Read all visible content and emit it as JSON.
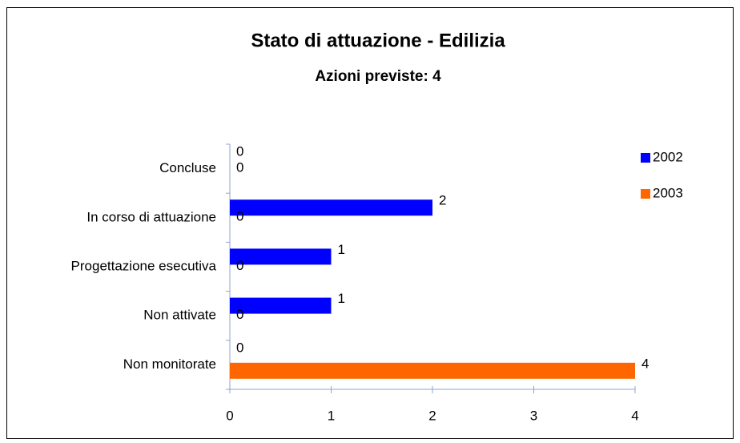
{
  "chart_data": {
    "type": "bar",
    "orientation": "horizontal",
    "title": "Stato di attuazione - Edilizia",
    "subtitle": "Azioni previste: 4",
    "categories": [
      "Concluse",
      "In corso di attuazione",
      "Progettazione esecutiva",
      "Non attivate",
      "Non monitorate"
    ],
    "series": [
      {
        "name": "2002",
        "color": "#0000ff",
        "values": [
          0,
          2,
          1,
          1,
          0
        ]
      },
      {
        "name": "2003",
        "color": "#ff6600",
        "values": [
          0,
          0,
          0,
          0,
          4
        ]
      }
    ],
    "xlim": [
      0,
      4
    ],
    "xticks": [
      0,
      1,
      2,
      3,
      4
    ],
    "grid": false,
    "legend": "right"
  }
}
